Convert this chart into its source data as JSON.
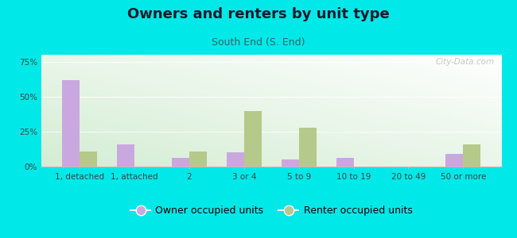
{
  "title": "Owners and renters by unit type",
  "subtitle": "South End (S. End)",
  "categories": [
    "1, detached",
    "1, attached",
    "2",
    "3 or 4",
    "5 to 9",
    "10 to 19",
    "20 to 49",
    "50 or more"
  ],
  "owner_values": [
    62,
    16,
    6,
    10,
    5,
    6,
    0,
    9
  ],
  "renter_values": [
    11,
    0,
    11,
    40,
    28,
    0,
    0,
    16
  ],
  "owner_color": "#c9a8e0",
  "renter_color": "#b5c98a",
  "background_outer": "#00e8e8",
  "ylim": [
    0,
    80
  ],
  "yticks": [
    0,
    25,
    50,
    75
  ],
  "ytick_labels": [
    "0%",
    "25%",
    "50%",
    "75%"
  ],
  "legend_owner": "Owner occupied units",
  "legend_renter": "Renter occupied units",
  "bar_width": 0.32,
  "title_fontsize": 13,
  "subtitle_fontsize": 9,
  "tick_fontsize": 7.5,
  "legend_fontsize": 9,
  "watermark": "City-Data.com"
}
